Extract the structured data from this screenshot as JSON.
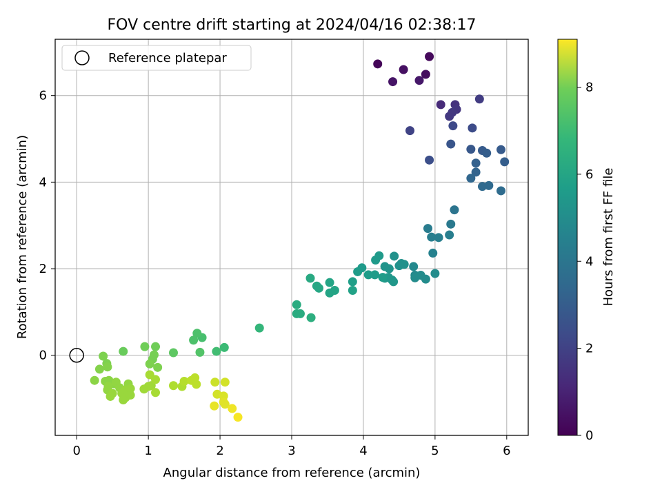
{
  "chart_data": {
    "type": "scatter",
    "title": "FOV centre drift starting at 2024/04/16 02:38:17",
    "xlabel": "Angular distance from reference (arcmin)",
    "ylabel": "Rotation from reference (arcmin)",
    "xlim": [
      -0.3,
      6.3
    ],
    "ylim": [
      -1.85,
      7.3
    ],
    "xticks": [
      0,
      1,
      2,
      3,
      4,
      5,
      6
    ],
    "yticks": [
      0,
      2,
      4,
      6
    ],
    "grid": true,
    "legend": {
      "position": "top-left",
      "entries": [
        {
          "label": "Reference platepar",
          "marker": "open-circle"
        }
      ]
    },
    "reference_point": {
      "x": 0,
      "y": 0
    },
    "colorbar": {
      "label": "Hours from first FF file",
      "colormap": "viridis",
      "range": [
        0,
        9.1
      ],
      "ticks": [
        0,
        2,
        4,
        6,
        8
      ]
    },
    "series": [
      {
        "points": [
          [
            4.2,
            6.73,
            0.1
          ],
          [
            4.92,
            6.9,
            0.2
          ],
          [
            4.87,
            6.49,
            0.3
          ],
          [
            4.56,
            6.6,
            0.4
          ],
          [
            4.41,
            6.32,
            0.5
          ],
          [
            4.78,
            6.35,
            0.6
          ],
          [
            5.08,
            5.79,
            1.1
          ],
          [
            5.28,
            5.79,
            1.3
          ],
          [
            5.3,
            5.68,
            1.4
          ],
          [
            5.2,
            5.52,
            1.5
          ],
          [
            5.24,
            5.61,
            1.5
          ],
          [
            5.62,
            5.92,
            1.6
          ],
          [
            4.65,
            5.19,
            1.8
          ],
          [
            5.25,
            5.3,
            2.0
          ],
          [
            5.52,
            5.25,
            2.1
          ],
          [
            4.92,
            4.51,
            2.2
          ],
          [
            5.22,
            4.88,
            2.4
          ],
          [
            5.5,
            4.76,
            2.5
          ],
          [
            5.66,
            4.73,
            2.6
          ],
          [
            5.72,
            4.67,
            2.7
          ],
          [
            5.92,
            4.75,
            2.6
          ],
          [
            5.97,
            4.47,
            2.7
          ],
          [
            5.57,
            4.44,
            2.8
          ],
          [
            5.57,
            4.23,
            2.9
          ],
          [
            5.5,
            4.09,
            3.0
          ],
          [
            5.66,
            3.9,
            3.1
          ],
          [
            5.75,
            3.92,
            3.1
          ],
          [
            5.92,
            3.8,
            3.2
          ],
          [
            5.27,
            3.36,
            3.5
          ],
          [
            5.22,
            3.03,
            3.7
          ],
          [
            4.9,
            2.93,
            3.8
          ],
          [
            4.95,
            2.73,
            3.9
          ],
          [
            5.05,
            2.72,
            3.9
          ],
          [
            5.2,
            2.78,
            3.9
          ],
          [
            4.97,
            2.36,
            4.0
          ],
          [
            4.7,
            2.05,
            4.3
          ],
          [
            4.72,
            1.85,
            4.3
          ],
          [
            4.8,
            1.85,
            4.4
          ],
          [
            4.72,
            1.79,
            4.4
          ],
          [
            4.87,
            1.76,
            4.4
          ],
          [
            5.0,
            1.89,
            4.4
          ],
          [
            4.43,
            2.29,
            4.6
          ],
          [
            4.53,
            2.12,
            4.6
          ],
          [
            4.5,
            2.07,
            4.6
          ],
          [
            4.57,
            2.1,
            4.6
          ],
          [
            4.3,
            2.05,
            4.7
          ],
          [
            4.36,
            2.0,
            4.7
          ],
          [
            4.3,
            1.78,
            4.8
          ],
          [
            4.4,
            1.74,
            4.8
          ],
          [
            4.42,
            1.7,
            4.8
          ],
          [
            4.35,
            1.8,
            4.8
          ],
          [
            4.22,
            2.3,
            4.9
          ],
          [
            4.17,
            2.2,
            4.9
          ],
          [
            3.98,
            2.02,
            4.9
          ],
          [
            3.92,
            1.93,
            5.0
          ],
          [
            4.07,
            1.86,
            5.0
          ],
          [
            4.16,
            1.86,
            5.0
          ],
          [
            4.27,
            1.8,
            5.0
          ],
          [
            3.85,
            1.7,
            5.1
          ],
          [
            3.85,
            1.5,
            5.2
          ],
          [
            3.53,
            1.68,
            5.3
          ],
          [
            3.6,
            1.5,
            5.3
          ],
          [
            3.53,
            1.44,
            5.3
          ],
          [
            3.35,
            1.6,
            5.4
          ],
          [
            3.38,
            1.55,
            5.4
          ],
          [
            3.26,
            1.78,
            5.5
          ],
          [
            3.07,
            1.17,
            5.6
          ],
          [
            3.07,
            0.96,
            5.6
          ],
          [
            3.12,
            0.96,
            5.6
          ],
          [
            3.27,
            0.87,
            5.7
          ],
          [
            2.55,
            0.63,
            6.0
          ],
          [
            2.06,
            0.18,
            6.2
          ],
          [
            1.95,
            0.09,
            6.3
          ],
          [
            1.75,
            0.41,
            6.4
          ],
          [
            1.68,
            0.51,
            6.5
          ],
          [
            1.63,
            0.35,
            6.5
          ],
          [
            1.72,
            0.07,
            6.6
          ],
          [
            1.35,
            0.06,
            6.8
          ],
          [
            0.65,
            0.09,
            7.0
          ],
          [
            0.95,
            0.2,
            7.1
          ],
          [
            1.1,
            0.2,
            7.1
          ],
          [
            1.08,
            0.01,
            7.2
          ],
          [
            1.06,
            -0.09,
            7.2
          ],
          [
            1.02,
            -0.2,
            7.3
          ],
          [
            1.13,
            -0.28,
            7.3
          ],
          [
            0.37,
            -0.02,
            7.3
          ],
          [
            0.42,
            -0.19,
            7.3
          ],
          [
            0.43,
            -0.27,
            7.4
          ],
          [
            0.32,
            -0.32,
            7.4
          ],
          [
            0.25,
            -0.58,
            7.5
          ],
          [
            0.4,
            -0.6,
            7.5
          ],
          [
            0.45,
            -0.58,
            7.5
          ],
          [
            0.53,
            -0.66,
            7.5
          ],
          [
            0.44,
            -0.72,
            7.6
          ],
          [
            0.43,
            -0.8,
            7.6
          ],
          [
            0.55,
            -0.62,
            7.6
          ],
          [
            0.6,
            -0.75,
            7.6
          ],
          [
            0.72,
            -0.66,
            7.6
          ],
          [
            0.5,
            -0.88,
            7.7
          ],
          [
            0.63,
            -0.88,
            7.7
          ],
          [
            0.68,
            -0.8,
            7.7
          ],
          [
            0.75,
            -0.77,
            7.7
          ],
          [
            0.47,
            -0.95,
            7.7
          ],
          [
            0.65,
            -1.03,
            7.7
          ],
          [
            0.68,
            -0.98,
            7.7
          ],
          [
            0.75,
            -0.92,
            7.7
          ],
          [
            0.94,
            -0.78,
            7.8
          ],
          [
            1.0,
            -0.72,
            7.8
          ],
          [
            1.04,
            -0.7,
            7.8
          ],
          [
            1.02,
            -0.45,
            7.9
          ],
          [
            1.1,
            -0.56,
            7.9
          ],
          [
            1.1,
            -0.86,
            7.9
          ],
          [
            1.35,
            -0.7,
            8.0
          ],
          [
            1.47,
            -0.72,
            8.0
          ],
          [
            1.5,
            -0.6,
            8.1
          ],
          [
            1.6,
            -0.58,
            8.2
          ],
          [
            1.65,
            -0.52,
            8.2
          ],
          [
            1.67,
            -0.67,
            8.2
          ],
          [
            1.93,
            -0.62,
            8.4
          ],
          [
            2.07,
            -0.62,
            8.5
          ],
          [
            1.96,
            -0.9,
            8.5
          ],
          [
            2.05,
            -0.94,
            8.6
          ],
          [
            2.05,
            -1.08,
            8.7
          ],
          [
            2.07,
            -1.13,
            8.7
          ],
          [
            1.92,
            -1.17,
            8.8
          ],
          [
            2.17,
            -1.23,
            8.9
          ],
          [
            2.25,
            -1.43,
            9.0
          ]
        ]
      }
    ]
  }
}
